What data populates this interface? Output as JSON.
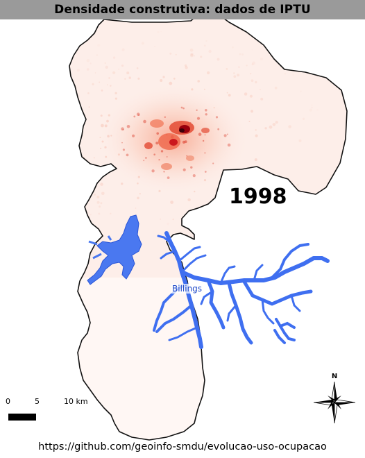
{
  "title": "Densidade construtiva: dados de IPTU",
  "map": {
    "year_label": "1998",
    "lake_label": "Billings",
    "colors": {
      "boundary": "#111111",
      "low_density": "#fdeee9",
      "medium_density": "#f6b6a3",
      "high_density": "#d7301f",
      "very_high_density": "#67000d",
      "water": "#4a78f0",
      "water_outline": "#2a55d6"
    }
  },
  "scale_bar": {
    "tick_0": "0",
    "tick_5": "5",
    "tick_10": "10 km"
  },
  "north_arrow": {
    "label": "N",
    "icon": "north-arrow-icon"
  },
  "footer_url": "https://github.com/geoinfo-smdu/evolucao-uso-ocupacao"
}
